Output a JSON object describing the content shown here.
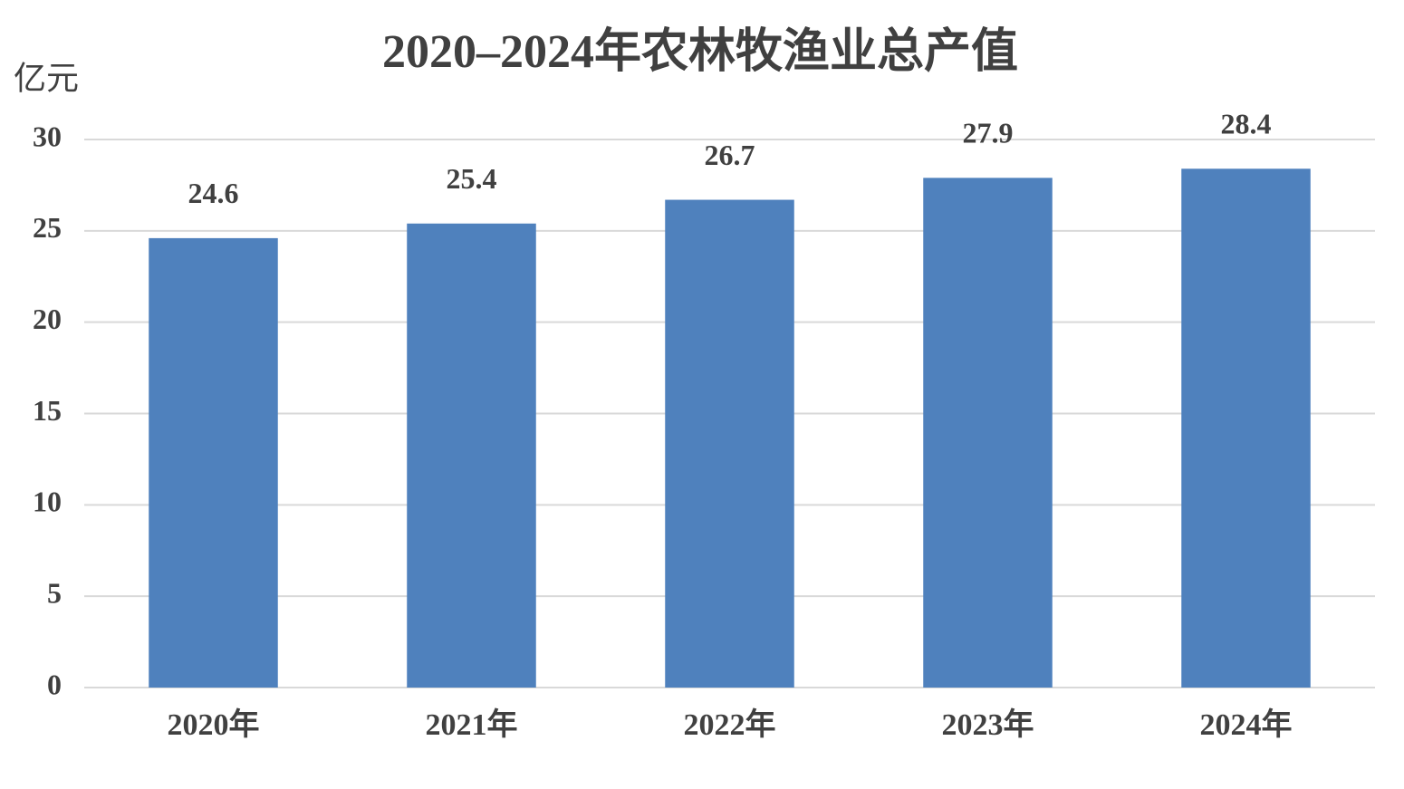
{
  "chart_data": {
    "type": "bar",
    "title": "2020–2024年农林牧渔业总产值",
    "y_label": "亿元",
    "categories": [
      "2020年",
      "2021年",
      "2022年",
      "2023年",
      "2024年"
    ],
    "values": [
      24.6,
      25.4,
      26.7,
      27.9,
      28.4
    ],
    "color": "#4f81bd",
    "ylim": [
      0,
      30
    ],
    "yticks": [
      0,
      5,
      10,
      15,
      20,
      25,
      30
    ],
    "grid": true
  }
}
